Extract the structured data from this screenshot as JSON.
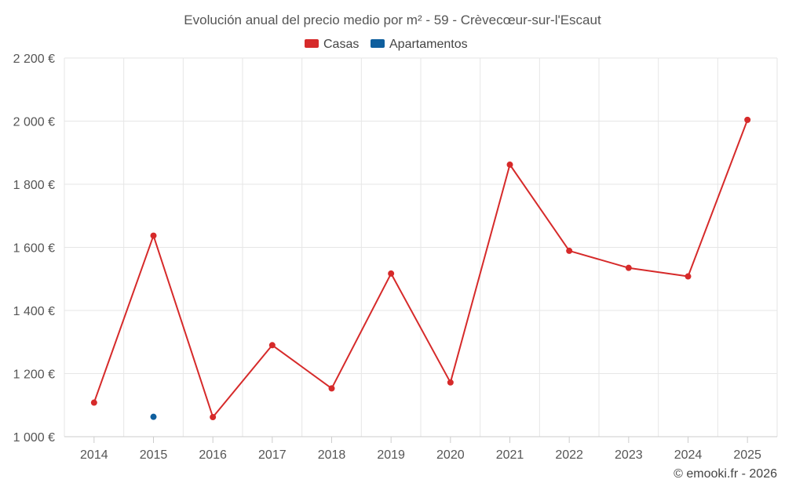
{
  "chart_data": {
    "type": "line",
    "title": "Evolución anual del precio medio por m² - 59 - Crèvecœur-sur-l'Escaut",
    "xlabel": "",
    "ylabel": "",
    "categories": [
      "2014",
      "2015",
      "2016",
      "2017",
      "2018",
      "2019",
      "2020",
      "2021",
      "2022",
      "2023",
      "2024",
      "2025"
    ],
    "ylim": [
      1000,
      2200
    ],
    "yticks": [
      1000,
      1200,
      1400,
      1600,
      1800,
      2000,
      2200
    ],
    "ytick_labels": [
      "1 000 €",
      "1 200 €",
      "1 400 €",
      "1 600 €",
      "1 800 €",
      "2 000 €",
      "2 200 €"
    ],
    "grid": true,
    "legend_position": "top-center",
    "series": [
      {
        "name": "Casas",
        "color": "#d62a2a",
        "values": [
          1108,
          1637,
          1062,
          1290,
          1153,
          1517,
          1172,
          1862,
          1589,
          1535,
          1508,
          2004
        ]
      },
      {
        "name": "Apartamentos",
        "color": "#0f5f9e",
        "values": [
          null,
          1063,
          null,
          null,
          null,
          null,
          null,
          null,
          null,
          null,
          null,
          null
        ]
      }
    ]
  },
  "credit": "© emooki.fr - 2026"
}
